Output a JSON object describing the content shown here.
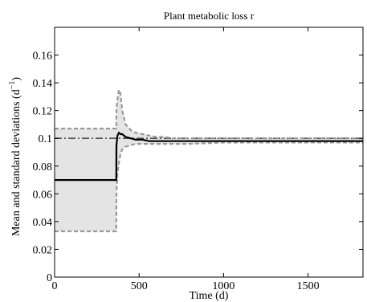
{
  "chart_data": {
    "type": "line",
    "title": "Plant metabolic loss r",
    "xlabel": "Time (d)",
    "ylabel": "Mean and standard deviations (d",
    "ylabel_sup": "−1",
    "ylabel_close": ")",
    "xlim": [
      0,
      1825
    ],
    "ylim": [
      0,
      0.18
    ],
    "xticks": [
      0,
      500,
      1000,
      1500
    ],
    "xtick_labels": [
      "0",
      "500",
      "1000",
      "1500"
    ],
    "yticks": [
      0,
      0.02,
      0.04,
      0.06,
      0.08,
      0.1,
      0.12,
      0.14,
      0.16
    ],
    "ytick_labels": [
      "0",
      "0.02",
      "0.04",
      "0.06",
      "0.08",
      "0.1",
      "0.12",
      "0.14",
      "0.16"
    ],
    "grid": false,
    "legend": "none",
    "reference_line": {
      "y": 0.1,
      "style": "dash-dot",
      "color": "#555555"
    },
    "series": [
      {
        "role": "mean",
        "color": "#000000",
        "x": [
          0,
          365,
          366,
          372,
          380,
          390,
          400,
          420,
          450,
          480,
          520,
          560,
          600,
          650,
          700,
          800,
          1000,
          1200,
          1500,
          1825
        ],
        "y": [
          0.07,
          0.07,
          0.095,
          0.102,
          0.104,
          0.103,
          0.103,
          0.101,
          0.1,
          0.099,
          0.099,
          0.098,
          0.098,
          0.098,
          0.098,
          0.098,
          0.098,
          0.098,
          0.098,
          0.098
        ]
      },
      {
        "role": "upper-std",
        "color": "#999999",
        "x": [
          0,
          365,
          366,
          372,
          380,
          390,
          400,
          420,
          450,
          480,
          520,
          560,
          600,
          650,
          700,
          800,
          1000,
          1200,
          1500,
          1825
        ],
        "y": [
          0.107,
          0.107,
          0.12,
          0.128,
          0.135,
          0.132,
          0.12,
          0.11,
          0.106,
          0.104,
          0.103,
          0.102,
          0.101,
          0.101,
          0.1,
          0.1,
          0.1,
          0.1,
          0.1,
          0.1
        ]
      },
      {
        "role": "lower-std",
        "color": "#999999",
        "x": [
          0,
          365,
          366,
          372,
          380,
          390,
          400,
          420,
          450,
          480,
          520,
          560,
          600,
          650,
          700,
          800,
          1000,
          1200,
          1500,
          1825
        ],
        "y": [
          0.033,
          0.033,
          0.06,
          0.075,
          0.082,
          0.089,
          0.092,
          0.094,
          0.095,
          0.096,
          0.096,
          0.096,
          0.096,
          0.096,
          0.096,
          0.096,
          0.097,
          0.097,
          0.097,
          0.097
        ]
      }
    ],
    "band_fill": "#e4e4e4"
  }
}
